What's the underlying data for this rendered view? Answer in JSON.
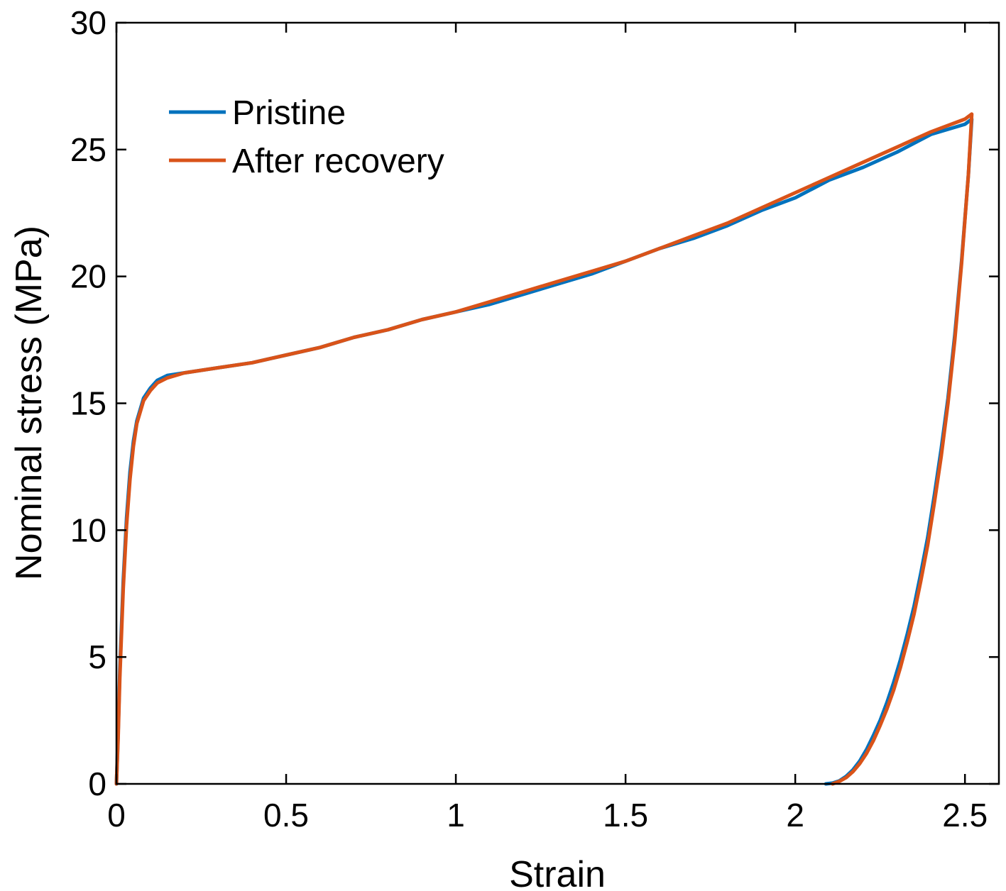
{
  "chart_data": {
    "type": "line",
    "xlabel": "Strain",
    "ylabel": "Nominal stress (MPa)",
    "xlim": [
      0,
      2.6
    ],
    "ylim": [
      0,
      30
    ],
    "xticks": [
      0,
      0.5,
      1,
      1.5,
      2,
      2.5
    ],
    "xtick_labels": [
      "0",
      "0.5",
      "1",
      "1.5",
      "2",
      "2.5"
    ],
    "yticks": [
      0,
      5,
      10,
      15,
      20,
      25,
      30
    ],
    "ytick_labels": [
      "0",
      "5",
      "10",
      "15",
      "20",
      "25",
      "30"
    ],
    "grid": false,
    "legend_position": "top-left",
    "series": [
      {
        "name": "Pristine",
        "color": "#0072BD",
        "x": [
          0,
          0.005,
          0.01,
          0.02,
          0.03,
          0.04,
          0.05,
          0.06,
          0.08,
          0.1,
          0.12,
          0.15,
          0.2,
          0.3,
          0.4,
          0.5,
          0.6,
          0.7,
          0.8,
          0.9,
          1.0,
          1.1,
          1.2,
          1.3,
          1.4,
          1.5,
          1.6,
          1.7,
          1.8,
          1.9,
          2.0,
          2.1,
          2.2,
          2.3,
          2.4,
          2.5,
          2.52,
          2.51,
          2.49,
          2.47,
          2.45,
          2.43,
          2.41,
          2.39,
          2.37,
          2.35,
          2.33,
          2.31,
          2.29,
          2.27,
          2.25,
          2.23,
          2.21,
          2.19,
          2.17,
          2.15,
          2.13,
          2.11,
          2.09
        ],
        "y": [
          0,
          2,
          4.5,
          8,
          10.5,
          12.3,
          13.5,
          14.3,
          15.2,
          15.6,
          15.9,
          16.1,
          16.2,
          16.4,
          16.6,
          16.9,
          17.2,
          17.6,
          17.9,
          18.3,
          18.6,
          18.9,
          19.3,
          19.7,
          20.1,
          20.6,
          21.1,
          21.5,
          22.0,
          22.6,
          23.1,
          23.8,
          24.3,
          24.9,
          25.6,
          26.0,
          26.2,
          24.0,
          20.6,
          17.7,
          15.2,
          13.2,
          11.4,
          9.7,
          8.3,
          7.0,
          5.9,
          4.9,
          4.0,
          3.2,
          2.5,
          1.9,
          1.35,
          0.9,
          0.55,
          0.3,
          0.12,
          0.03,
          0
        ]
      },
      {
        "name": "After recovery",
        "color": "#D95319",
        "x": [
          0,
          0.005,
          0.01,
          0.02,
          0.03,
          0.04,
          0.05,
          0.06,
          0.08,
          0.1,
          0.12,
          0.15,
          0.2,
          0.3,
          0.4,
          0.5,
          0.6,
          0.7,
          0.8,
          0.9,
          1.0,
          1.1,
          1.2,
          1.3,
          1.4,
          1.5,
          1.6,
          1.7,
          1.8,
          1.9,
          2.0,
          2.1,
          2.2,
          2.3,
          2.4,
          2.5,
          2.52,
          2.51,
          2.49,
          2.47,
          2.45,
          2.43,
          2.41,
          2.39,
          2.37,
          2.35,
          2.33,
          2.31,
          2.29,
          2.27,
          2.25,
          2.23,
          2.21,
          2.19,
          2.17,
          2.15,
          2.13,
          2.11
        ],
        "y": [
          0,
          1.8,
          4.2,
          7.7,
          10.2,
          12.0,
          13.3,
          14.2,
          15.1,
          15.5,
          15.8,
          16.0,
          16.2,
          16.4,
          16.6,
          16.9,
          17.2,
          17.6,
          17.9,
          18.3,
          18.6,
          19.0,
          19.4,
          19.8,
          20.2,
          20.6,
          21.1,
          21.6,
          22.1,
          22.7,
          23.3,
          23.9,
          24.5,
          25.1,
          25.7,
          26.2,
          26.4,
          24.0,
          20.5,
          17.5,
          15.0,
          12.9,
          11.1,
          9.4,
          8.0,
          6.7,
          5.6,
          4.6,
          3.7,
          2.95,
          2.3,
          1.7,
          1.2,
          0.8,
          0.48,
          0.25,
          0.1,
          0
        ]
      }
    ]
  }
}
